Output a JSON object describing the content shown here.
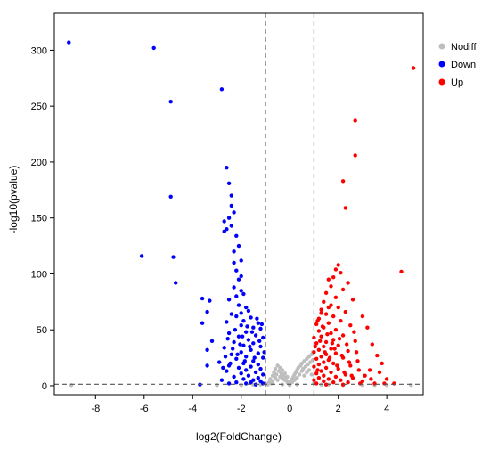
{
  "chart_data": {
    "type": "scatter",
    "title": "",
    "xlabel": "log2(FoldChange)",
    "ylabel": "-log10(pvalue)",
    "xlim": [
      -9.7,
      5.5
    ],
    "ylim": [
      -8,
      333
    ],
    "xticks": [
      -8,
      -6,
      -4,
      -2,
      0,
      2,
      4
    ],
    "yticks": [
      0,
      50,
      100,
      150,
      200,
      250,
      300
    ],
    "grid": false,
    "legend_position": "right-top",
    "thresholds": {
      "x": [
        -1,
        1
      ],
      "y": 1.3
    },
    "series": [
      {
        "name": "Nodiff",
        "color": "#bebebe",
        "points": [
          [
            -9.0,
            0.5
          ],
          [
            -0.9,
            1
          ],
          [
            -0.85,
            3
          ],
          [
            -0.8,
            6
          ],
          [
            -0.75,
            2
          ],
          [
            -0.7,
            9
          ],
          [
            -0.7,
            4
          ],
          [
            -0.65,
            12
          ],
          [
            -0.6,
            7
          ],
          [
            -0.6,
            15
          ],
          [
            -0.55,
            10
          ],
          [
            -0.5,
            18
          ],
          [
            -0.5,
            5
          ],
          [
            -0.45,
            13
          ],
          [
            -0.4,
            8
          ],
          [
            -0.4,
            16
          ],
          [
            -0.35,
            11
          ],
          [
            -0.3,
            6
          ],
          [
            -0.3,
            14
          ],
          [
            -0.25,
            9
          ],
          [
            -0.2,
            5
          ],
          [
            -0.2,
            11
          ],
          [
            -0.15,
            7
          ],
          [
            -0.1,
            3
          ],
          [
            -0.1,
            8
          ],
          [
            -0.05,
            4
          ],
          [
            0,
            1
          ],
          [
            0,
            3
          ],
          [
            0.05,
            4
          ],
          [
            0.1,
            6
          ],
          [
            0.1,
            3
          ],
          [
            0.15,
            8
          ],
          [
            0.2,
            10
          ],
          [
            0.2,
            5
          ],
          [
            0.25,
            12
          ],
          [
            0.3,
            7
          ],
          [
            0.3,
            14
          ],
          [
            0.35,
            16
          ],
          [
            0.4,
            10
          ],
          [
            0.45,
            18
          ],
          [
            0.5,
            13
          ],
          [
            0.5,
            20
          ],
          [
            0.55,
            15
          ],
          [
            0.6,
            22
          ],
          [
            0.6,
            9
          ],
          [
            0.65,
            17
          ],
          [
            0.7,
            24
          ],
          [
            0.7,
            12
          ],
          [
            0.75,
            19
          ],
          [
            0.8,
            26
          ],
          [
            0.8,
            14
          ],
          [
            0.85,
            21
          ],
          [
            0.9,
            28
          ],
          [
            0.9,
            10
          ],
          [
            0.95,
            23
          ],
          [
            0.95,
            30
          ],
          [
            -1.0,
            2
          ],
          [
            -1.2,
            1
          ],
          [
            -1.5,
            1
          ],
          [
            -2.0,
            0.5
          ],
          [
            -3.0,
            0.5
          ],
          [
            1.0,
            2
          ],
          [
            1.3,
            1
          ],
          [
            1.6,
            1
          ],
          [
            2.2,
            0.5
          ],
          [
            3.0,
            0.5
          ],
          [
            3.5,
            0.5
          ],
          [
            4.0,
            0.5
          ],
          [
            5.0,
            0.5
          ],
          [
            0,
            0.5
          ],
          [
            -0.3,
            1
          ],
          [
            0.3,
            1
          ]
        ]
      },
      {
        "name": "Down",
        "color": "#0000ff",
        "points": [
          [
            -9.1,
            307
          ],
          [
            -5.6,
            302
          ],
          [
            -2.8,
            265
          ],
          [
            -4.9,
            254
          ],
          [
            -2.6,
            195
          ],
          [
            -2.5,
            181
          ],
          [
            -2.4,
            170
          ],
          [
            -4.9,
            169
          ],
          [
            -2.4,
            161
          ],
          [
            -2.3,
            155
          ],
          [
            -2.5,
            150
          ],
          [
            -2.7,
            147
          ],
          [
            -2.4,
            143
          ],
          [
            -2.6,
            140
          ],
          [
            -2.7,
            138
          ],
          [
            -2.2,
            134
          ],
          [
            -2.1,
            125
          ],
          [
            -2.3,
            120
          ],
          [
            -6.1,
            116
          ],
          [
            -4.8,
            115
          ],
          [
            -2.0,
            112
          ],
          [
            -2.3,
            110
          ],
          [
            -2.2,
            103
          ],
          [
            -2.0,
            98
          ],
          [
            -2.1,
            95
          ],
          [
            -4.7,
            92
          ],
          [
            -2.3,
            88
          ],
          [
            -2.0,
            85
          ],
          [
            -1.9,
            82
          ],
          [
            -2.2,
            80
          ],
          [
            -3.6,
            78
          ],
          [
            -2.5,
            77
          ],
          [
            -3.3,
            76
          ],
          [
            -2.1,
            72
          ],
          [
            -1.8,
            70
          ],
          [
            -1.7,
            67
          ],
          [
            -2.0,
            65
          ],
          [
            -3.4,
            66
          ],
          [
            -2.4,
            64
          ],
          [
            -2.2,
            62
          ],
          [
            -1.6,
            61
          ],
          [
            -1.9,
            58
          ],
          [
            -3.6,
            56
          ],
          [
            -2.6,
            57
          ],
          [
            -1.3,
            56
          ],
          [
            -2.0,
            54
          ],
          [
            -1.5,
            52
          ],
          [
            -1.2,
            51
          ],
          [
            -1.8,
            48
          ],
          [
            -2.5,
            47
          ],
          [
            -1.4,
            45
          ],
          [
            -2.1,
            44
          ],
          [
            -1.1,
            43
          ],
          [
            -1.7,
            41
          ],
          [
            -3.2,
            40
          ],
          [
            -2.3,
            39
          ],
          [
            -1.5,
            38
          ],
          [
            -1.9,
            36
          ],
          [
            -1.2,
            35
          ],
          [
            -2.7,
            34
          ],
          [
            -3.4,
            32
          ],
          [
            -1.6,
            32
          ],
          [
            -2.0,
            30
          ],
          [
            -1.3,
            29
          ],
          [
            -2.4,
            28
          ],
          [
            -1.8,
            26
          ],
          [
            -1.1,
            25
          ],
          [
            -2.2,
            24
          ],
          [
            -1.5,
            22
          ],
          [
            -2.9,
            21
          ],
          [
            -1.9,
            20
          ],
          [
            -1.3,
            19
          ],
          [
            -2.5,
            18
          ],
          [
            -3.4,
            18
          ],
          [
            -1.6,
            17
          ],
          [
            -2.1,
            16
          ],
          [
            -1.2,
            15
          ],
          [
            -1.8,
            14
          ],
          [
            -2.6,
            13
          ],
          [
            -1.4,
            12
          ],
          [
            -2.0,
            11
          ],
          [
            -1.1,
            10
          ],
          [
            -1.7,
            9
          ],
          [
            -2.3,
            8
          ],
          [
            -1.3,
            7
          ],
          [
            -1.9,
            6
          ],
          [
            -2.8,
            5
          ],
          [
            -1.5,
            5
          ],
          [
            -1.2,
            4
          ],
          [
            -2.2,
            3
          ],
          [
            -1.6,
            3
          ],
          [
            -1.1,
            2
          ],
          [
            -1.8,
            2
          ],
          [
            -2.5,
            2
          ],
          [
            -3.7,
            1
          ],
          [
            -1.4,
            1
          ],
          [
            -1.05,
            30
          ],
          [
            -1.15,
            55
          ],
          [
            -1.25,
            40
          ],
          [
            -1.35,
            60
          ],
          [
            -1.45,
            25
          ],
          [
            -1.55,
            48
          ],
          [
            -1.65,
            35
          ],
          [
            -1.75,
            53
          ],
          [
            -1.85,
            22
          ],
          [
            -1.95,
            44
          ],
          [
            -2.05,
            37
          ],
          [
            -2.15,
            28
          ],
          [
            -2.25,
            50
          ],
          [
            -2.35,
            33
          ],
          [
            -2.45,
            20
          ],
          [
            -2.55,
            42
          ],
          [
            -2.65,
            26
          ],
          [
            -2.75,
            16
          ]
        ]
      },
      {
        "name": "Up",
        "color": "#ff0000",
        "points": [
          [
            5.1,
            284
          ],
          [
            2.7,
            237
          ],
          [
            2.7,
            206
          ],
          [
            2.2,
            183
          ],
          [
            2.3,
            159
          ],
          [
            4.6,
            102
          ],
          [
            2.0,
            108
          ],
          [
            1.9,
            104
          ],
          [
            2.1,
            101
          ],
          [
            1.8,
            97
          ],
          [
            2.4,
            92
          ],
          [
            1.6,
            95
          ],
          [
            1.7,
            89
          ],
          [
            2.2,
            86
          ],
          [
            1.5,
            83
          ],
          [
            1.9,
            79
          ],
          [
            2.6,
            77
          ],
          [
            1.4,
            75
          ],
          [
            1.7,
            72
          ],
          [
            2.0,
            70
          ],
          [
            1.3,
            68
          ],
          [
            2.3,
            66
          ],
          [
            1.5,
            64
          ],
          [
            1.8,
            62
          ],
          [
            3.0,
            62
          ],
          [
            1.2,
            60
          ],
          [
            2.1,
            58
          ],
          [
            1.6,
            56
          ],
          [
            1.1,
            55
          ],
          [
            2.5,
            54
          ],
          [
            1.4,
            52
          ],
          [
            1.9,
            50
          ],
          [
            1.2,
            49
          ],
          [
            3.2,
            52
          ],
          [
            1.7,
            47
          ],
          [
            2.2,
            45
          ],
          [
            1.3,
            44
          ],
          [
            1.0,
            43
          ],
          [
            1.8,
            41
          ],
          [
            2.7,
            40
          ],
          [
            1.5,
            39
          ],
          [
            1.1,
            38
          ],
          [
            2.0,
            36
          ],
          [
            3.4,
            37
          ],
          [
            1.4,
            35
          ],
          [
            1.7,
            33
          ],
          [
            1.2,
            32
          ],
          [
            2.4,
            31
          ],
          [
            1.0,
            30
          ],
          [
            1.9,
            29
          ],
          [
            1.5,
            28
          ],
          [
            1.3,
            26
          ],
          [
            2.2,
            25
          ],
          [
            3.6,
            27
          ],
          [
            1.1,
            24
          ],
          [
            1.6,
            23
          ],
          [
            2.8,
            22
          ],
          [
            1.4,
            21
          ],
          [
            1.8,
            20
          ],
          [
            1.2,
            19
          ],
          [
            2.5,
            18
          ],
          [
            1.0,
            17
          ],
          [
            1.5,
            16
          ],
          [
            2.0,
            15
          ],
          [
            3.3,
            14
          ],
          [
            1.3,
            13
          ],
          [
            1.7,
            12
          ],
          [
            1.1,
            11
          ],
          [
            2.3,
            10
          ],
          [
            1.4,
            9
          ],
          [
            3.1,
            9
          ],
          [
            1.9,
            8
          ],
          [
            1.2,
            7
          ],
          [
            2.6,
            7
          ],
          [
            1.6,
            6
          ],
          [
            1.0,
            5
          ],
          [
            2.1,
            5
          ],
          [
            3.0,
            4
          ],
          [
            1.4,
            4
          ],
          [
            1.8,
            3
          ],
          [
            2.4,
            3
          ],
          [
            1.1,
            2
          ],
          [
            2.9,
            2
          ],
          [
            3.5,
            2
          ],
          [
            3.9,
            2
          ],
          [
            4.3,
            2
          ],
          [
            1.5,
            1
          ],
          [
            2.2,
            1
          ],
          [
            1.05,
            35
          ],
          [
            1.15,
            58
          ],
          [
            1.25,
            40
          ],
          [
            1.35,
            53
          ],
          [
            1.45,
            30
          ],
          [
            1.55,
            46
          ],
          [
            1.65,
            25
          ],
          [
            1.75,
            38
          ],
          [
            1.85,
            33
          ],
          [
            1.95,
            18
          ],
          [
            2.05,
            42
          ],
          [
            2.15,
            27
          ],
          [
            2.25,
            12
          ],
          [
            2.35,
            37
          ],
          [
            2.45,
            21
          ],
          [
            2.55,
            9
          ],
          [
            2.75,
            30
          ],
          [
            2.85,
            14
          ],
          [
            3.7,
            12
          ],
          [
            4.0,
            6
          ],
          [
            3.8,
            20
          ],
          [
            3.35,
            6
          ],
          [
            2.65,
            48
          ],
          [
            1.15,
            14
          ],
          [
            1.3,
            65
          ],
          [
            1.6,
            70
          ]
        ]
      }
    ]
  }
}
